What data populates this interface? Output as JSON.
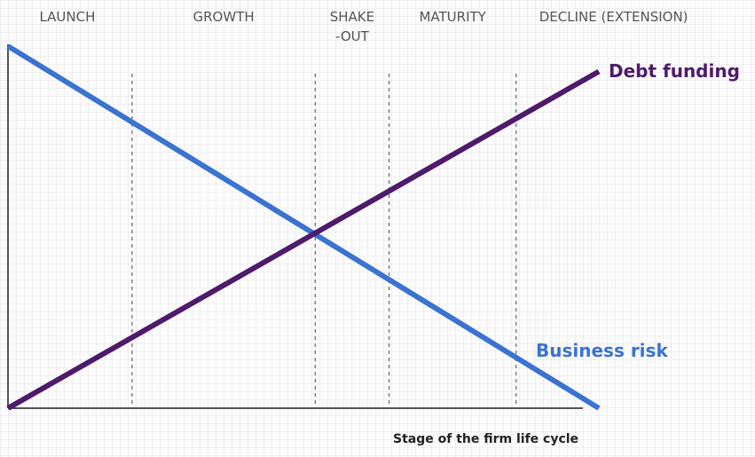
{
  "colors": {
    "debt": "#4e1a6c",
    "risk": "#3a73d0",
    "axis": "#555555",
    "divider": "#666666"
  },
  "chart_data": {
    "type": "line",
    "title": "",
    "xlabel": "Stage of the firm life cycle",
    "ylabel": "",
    "stages": [
      {
        "label_lines": [
          "LAUNCH"
        ]
      },
      {
        "label_lines": [
          "GROWTH"
        ]
      },
      {
        "label_lines": [
          "SHAKE",
          "-OUT"
        ]
      },
      {
        "label_lines": [
          "MATURITY"
        ]
      },
      {
        "label_lines": [
          "DECLINE (EXTENSION)"
        ]
      }
    ],
    "stage_boundaries": [
      0.21,
      0.52,
      0.645,
      0.86
    ],
    "xlim": [
      0,
      1
    ],
    "ylim": [
      0,
      1
    ],
    "grid": false,
    "series": [
      {
        "name": "Debt funding",
        "x": [
          0,
          1
        ],
        "values": [
          0,
          0.93
        ]
      },
      {
        "name": "Business risk",
        "x": [
          0,
          1
        ],
        "values": [
          1,
          0
        ]
      }
    ]
  }
}
